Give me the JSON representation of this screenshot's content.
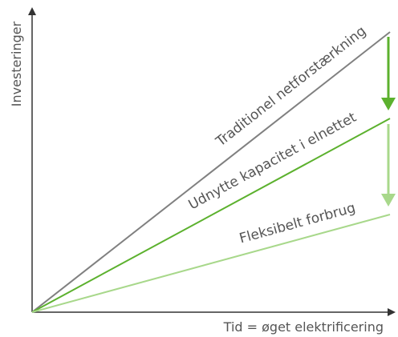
{
  "y_axis_label": "Investeringer",
  "x_axis_label": "Tid = øget elektrificering",
  "lines": [
    {
      "label": "Traditionel netforstærkning"
    },
    {
      "label": "Udnytte kapacitet i elnettet"
    },
    {
      "label": "Fleksibelt forbrug"
    }
  ]
}
